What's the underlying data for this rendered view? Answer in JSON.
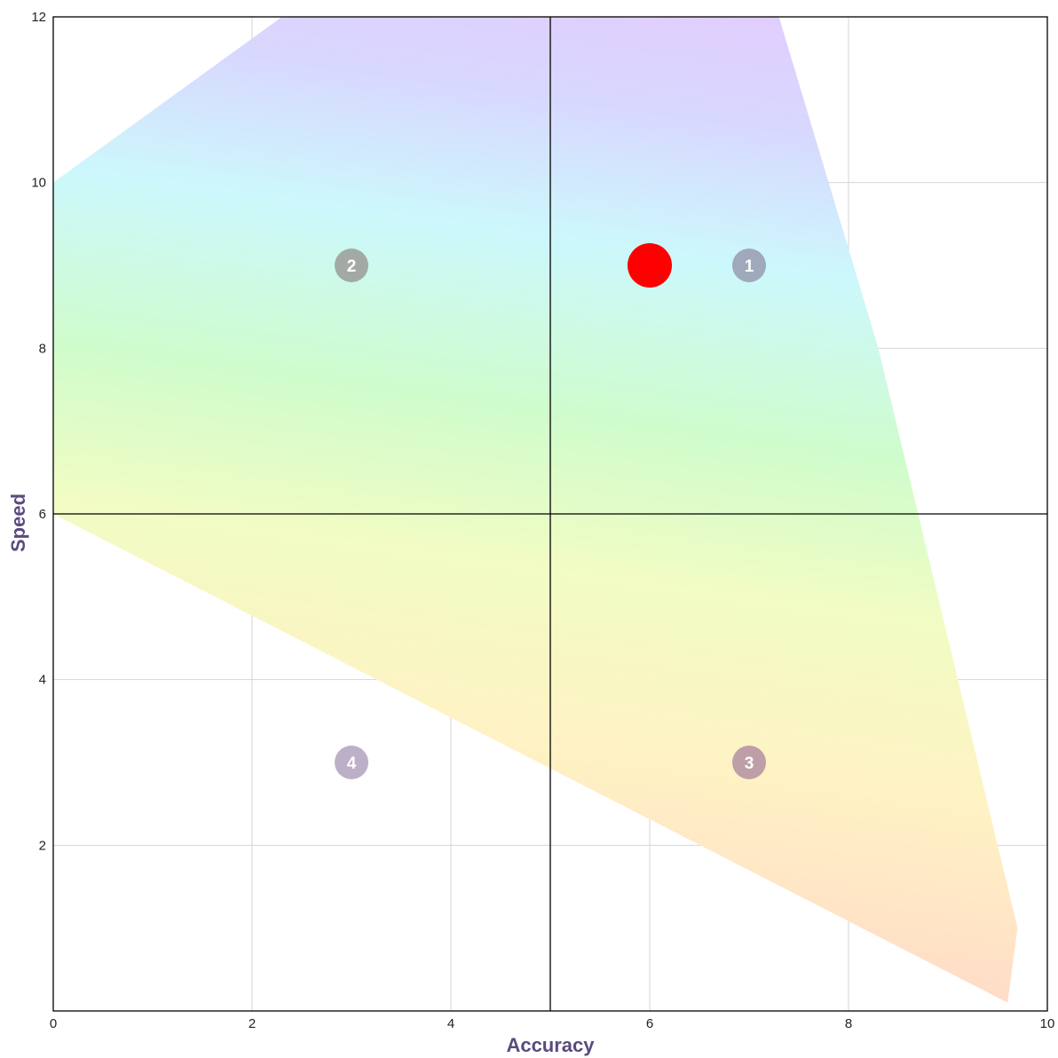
{
  "chart_data": {
    "type": "scatter",
    "title": "",
    "xlabel": "Accuracy",
    "ylabel": "Speed",
    "xlim": [
      0,
      10
    ],
    "ylim": [
      0,
      12
    ],
    "x_ticks": [
      "0",
      "2",
      "4",
      "6",
      "8",
      "10"
    ],
    "y_ticks": [
      "2",
      "4",
      "6",
      "8",
      "10",
      "12"
    ],
    "grid": true,
    "quadrant_dividers": {
      "x": 5,
      "y": 6
    },
    "region_polygon": [
      [
        0,
        6
      ],
      [
        0,
        10
      ],
      [
        2.3,
        12
      ],
      [
        7.3,
        12
      ],
      [
        8.3,
        8
      ],
      [
        9.7,
        1
      ],
      [
        9.6,
        0.1
      ]
    ],
    "region_gradient_colors": [
      "#ffd9c8",
      "#fff2c4",
      "#f1fcc4",
      "#cffccc",
      "#ccf8fc",
      "#d8d8fe",
      "#e3cbff"
    ],
    "quadrant_labels": [
      {
        "label": "1",
        "x": 7,
        "y": 9,
        "color": "#a0a8bc"
      },
      {
        "label": "2",
        "x": 3,
        "y": 9,
        "color": "#a3aaa6"
      },
      {
        "label": "3",
        "x": 7,
        "y": 3,
        "color": "#be9fa8"
      },
      {
        "label": "4",
        "x": 3,
        "y": 3,
        "color": "#bcb0c8"
      }
    ],
    "points": [
      {
        "x": 6,
        "y": 9,
        "color": "#ff0000"
      }
    ],
    "colors": {
      "axis_title": "#5b4a80",
      "grid": "#d4d4d4",
      "divider": "#000000",
      "frame": "#000000"
    }
  }
}
